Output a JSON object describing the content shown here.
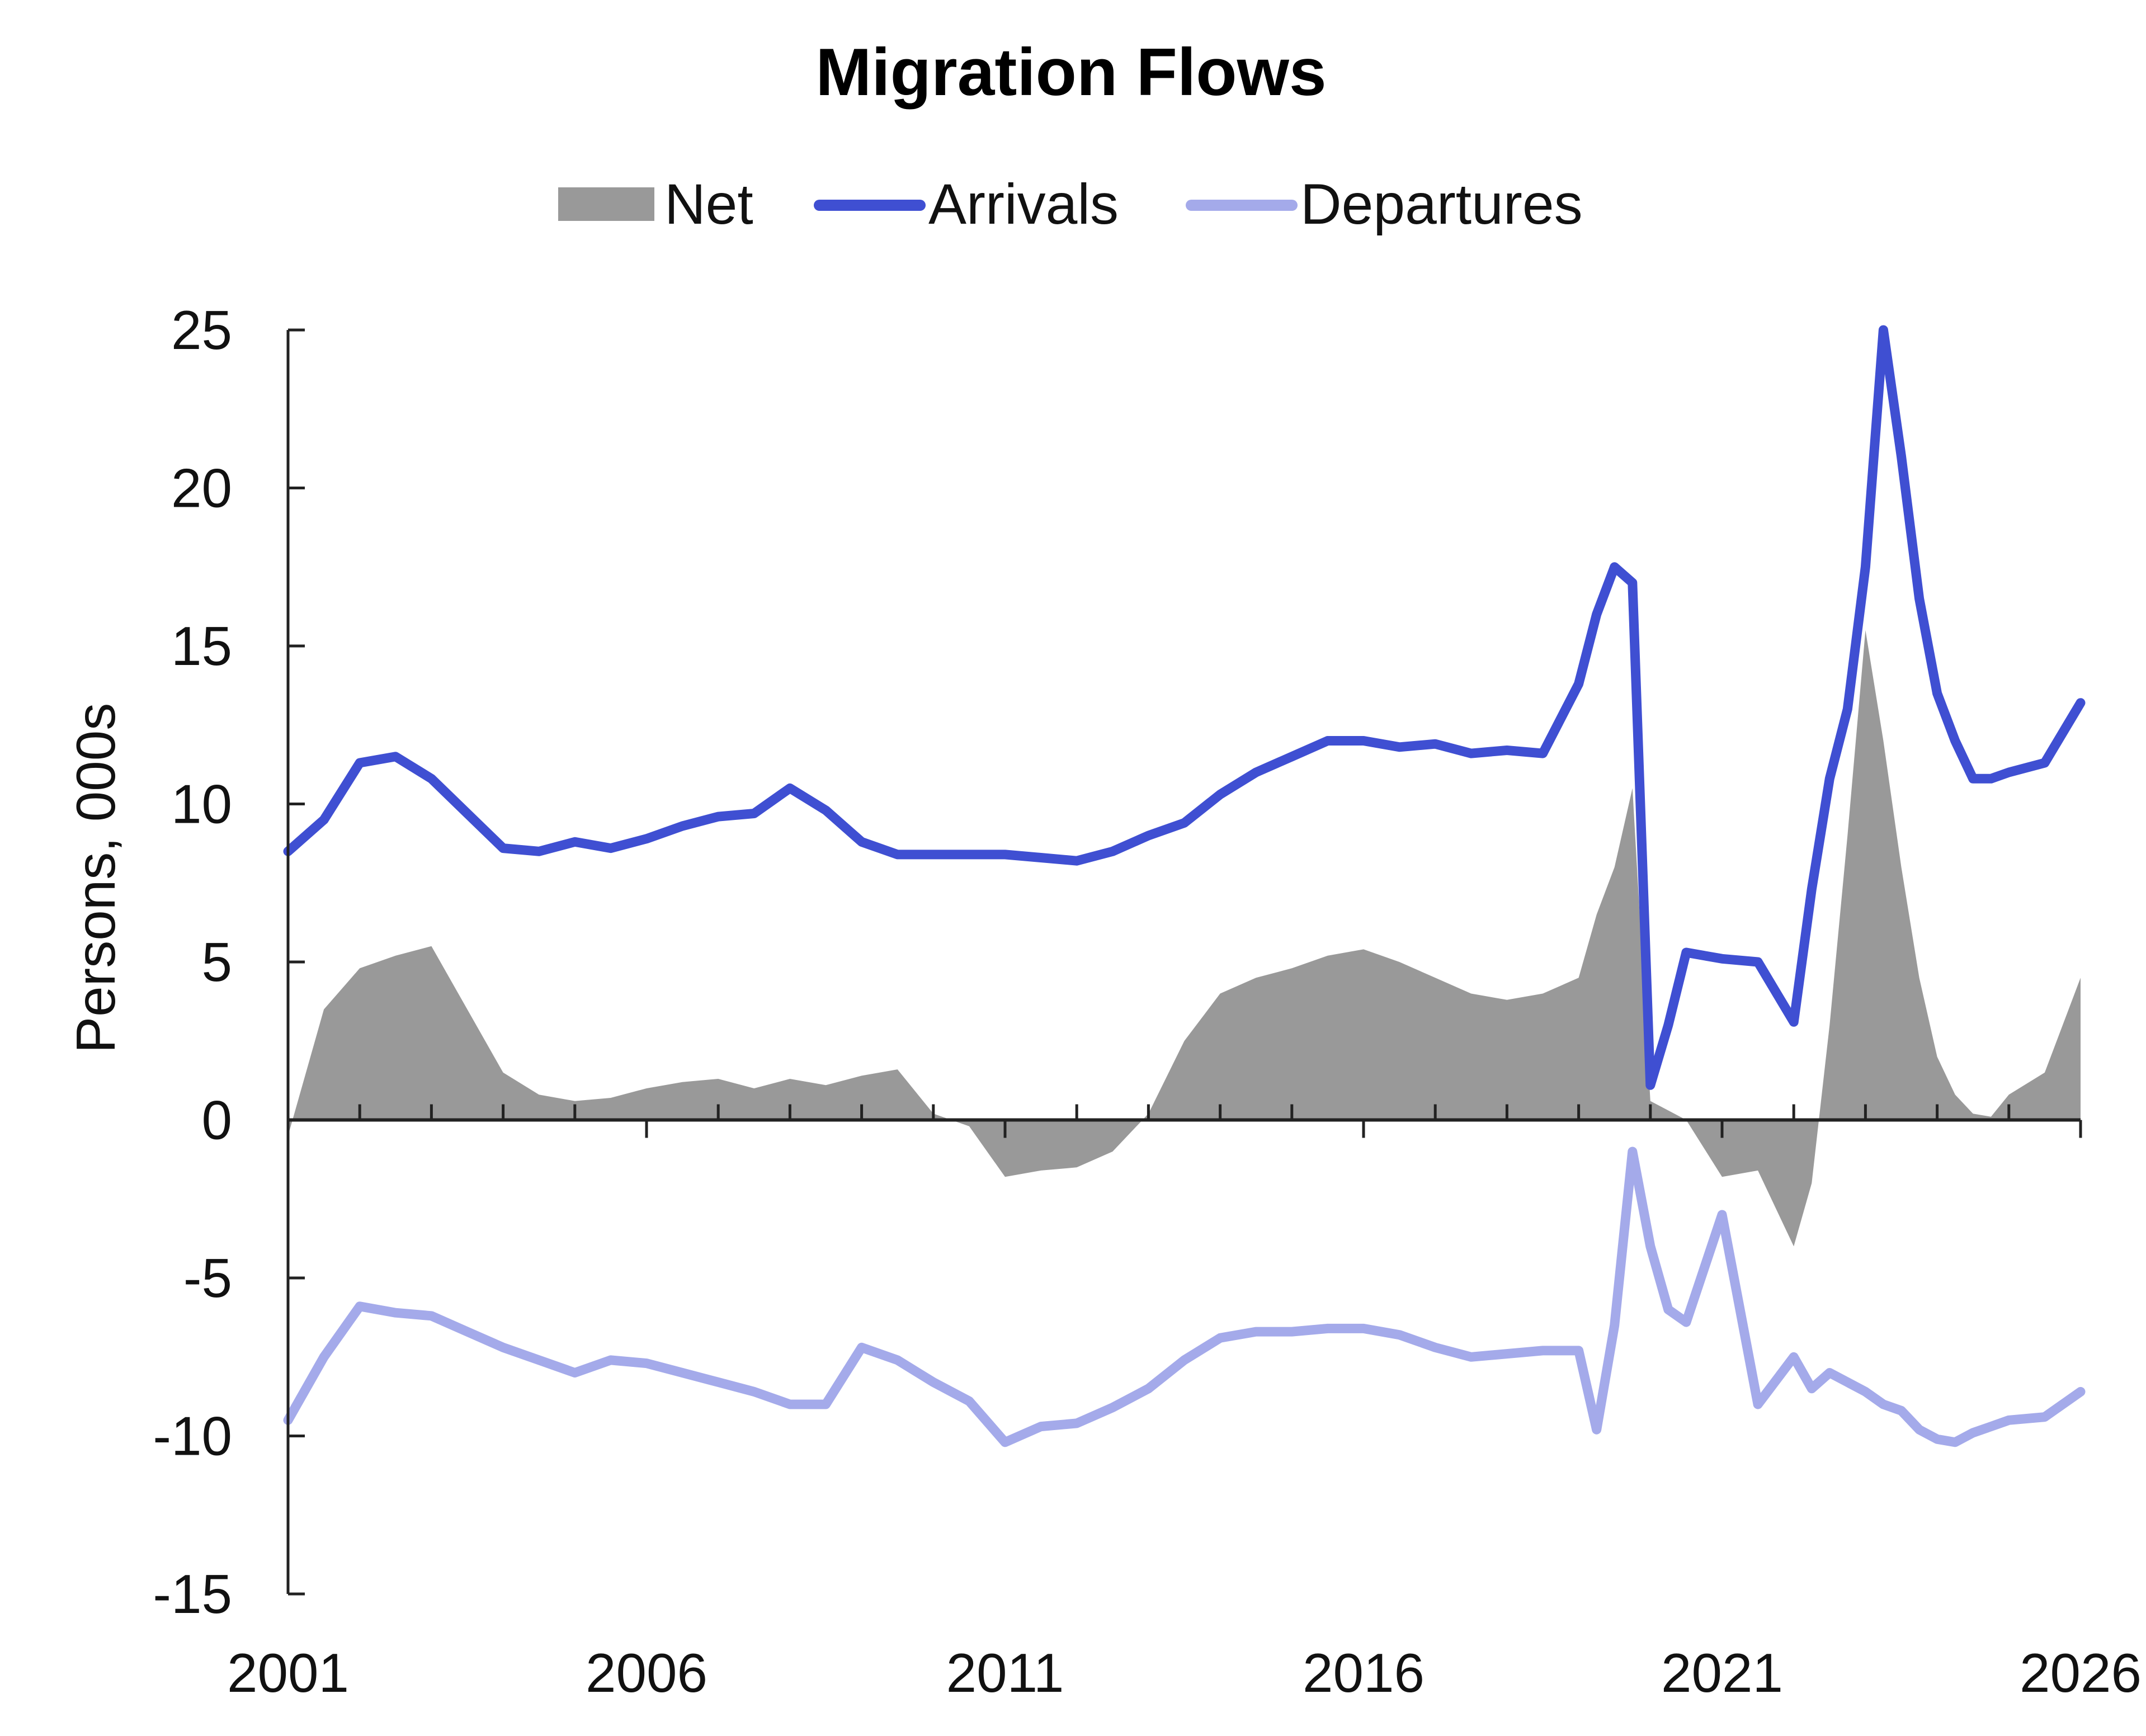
{
  "chart_data": {
    "type": "line",
    "title": "Migration Flows",
    "xlabel": "",
    "ylabel": "Persons, 000s",
    "xlim": [
      2001,
      2026
    ],
    "ylim": [
      -15,
      25
    ],
    "x_ticks": [
      "2001",
      "2006",
      "2011",
      "2016",
      "2021",
      "2026"
    ],
    "y_ticks": [
      "25",
      "20",
      "15",
      "10",
      "5",
      "0",
      "-5",
      "-10",
      "-15"
    ],
    "legend_position": "top-center",
    "grid": false,
    "x": [
      2001.0,
      2001.5,
      2002.0,
      2002.5,
      2003.0,
      2003.5,
      2004.0,
      2004.5,
      2005.0,
      2005.5,
      2006.0,
      2006.5,
      2007.0,
      2007.5,
      2008.0,
      2008.5,
      2009.0,
      2009.5,
      2010.0,
      2010.5,
      2011.0,
      2011.5,
      2012.0,
      2012.5,
      2013.0,
      2013.5,
      2014.0,
      2014.5,
      2015.0,
      2015.5,
      2016.0,
      2016.5,
      2017.0,
      2017.5,
      2018.0,
      2018.5,
      2019.0,
      2019.25,
      2019.5,
      2019.75,
      2020.0,
      2020.25,
      2020.5,
      2021.0,
      2021.5,
      2022.0,
      2022.25,
      2022.5,
      2022.75,
      2023.0,
      2023.25,
      2023.5,
      2023.75,
      2024.0,
      2024.25,
      2024.5,
      2024.75,
      2025.0,
      2025.5,
      2026.0
    ],
    "series": [
      {
        "name": "Net",
        "style": "area",
        "color": "#999999",
        "values": [
          -0.5,
          3.5,
          4.8,
          5.2,
          5.5,
          3.5,
          1.5,
          0.8,
          0.6,
          0.7,
          1.0,
          1.2,
          1.3,
          1.0,
          1.3,
          1.1,
          1.4,
          1.6,
          0.2,
          -0.2,
          -1.8,
          -1.6,
          -1.5,
          -1.0,
          0.2,
          2.5,
          4.0,
          4.5,
          4.8,
          5.2,
          5.4,
          5.0,
          4.5,
          4.0,
          3.8,
          4.0,
          4.5,
          6.5,
          8.0,
          10.5,
          0.6,
          0.3,
          0.0,
          -1.8,
          -1.6,
          -4.0,
          -2.0,
          3.0,
          9.0,
          15.5,
          12.0,
          8.0,
          4.5,
          2.0,
          0.8,
          0.2,
          0.1,
          0.8,
          1.5,
          4.5
        ]
      },
      {
        "name": "Arrivals",
        "style": "line",
        "color": "#3f4fd2",
        "values": [
          8.5,
          9.5,
          11.3,
          11.5,
          10.8,
          9.7,
          8.6,
          8.5,
          8.8,
          8.6,
          8.9,
          9.3,
          9.6,
          9.7,
          10.5,
          9.8,
          8.8,
          8.4,
          8.4,
          8.4,
          8.4,
          8.3,
          8.2,
          8.5,
          9.0,
          9.4,
          10.3,
          11.0,
          11.5,
          12.0,
          12.0,
          11.8,
          11.9,
          11.6,
          11.7,
          11.6,
          13.8,
          16.0,
          17.5,
          17.0,
          1.1,
          3.0,
          5.3,
          5.1,
          5.0,
          3.1,
          7.3,
          10.8,
          13.0,
          17.5,
          25.0,
          21.0,
          16.5,
          13.5,
          12.0,
          10.8,
          10.8,
          11.0,
          11.3,
          13.2
        ]
      },
      {
        "name": "Departures",
        "style": "line",
        "color": "#a4aaea",
        "values": [
          -9.5,
          -7.5,
          -5.9,
          -6.1,
          -6.2,
          -6.7,
          -7.2,
          -7.6,
          -8.0,
          -7.6,
          -7.7,
          -8.0,
          -8.3,
          -8.6,
          -9.0,
          -9.0,
          -7.2,
          -7.6,
          -8.3,
          -8.9,
          -10.2,
          -9.7,
          -9.6,
          -9.1,
          -8.5,
          -7.6,
          -6.9,
          -6.7,
          -6.7,
          -6.6,
          -6.6,
          -6.8,
          -7.2,
          -7.5,
          -7.4,
          -7.3,
          -7.3,
          -9.8,
          -6.5,
          -1.0,
          -4.0,
          -6.0,
          -6.4,
          -3.0,
          -9.0,
          -7.5,
          -8.5,
          -8.0,
          -8.3,
          -8.6,
          -9.0,
          -9.2,
          -9.8,
          -10.1,
          -10.2,
          -9.9,
          -9.7,
          -9.5,
          -9.4,
          -8.6
        ]
      }
    ]
  }
}
